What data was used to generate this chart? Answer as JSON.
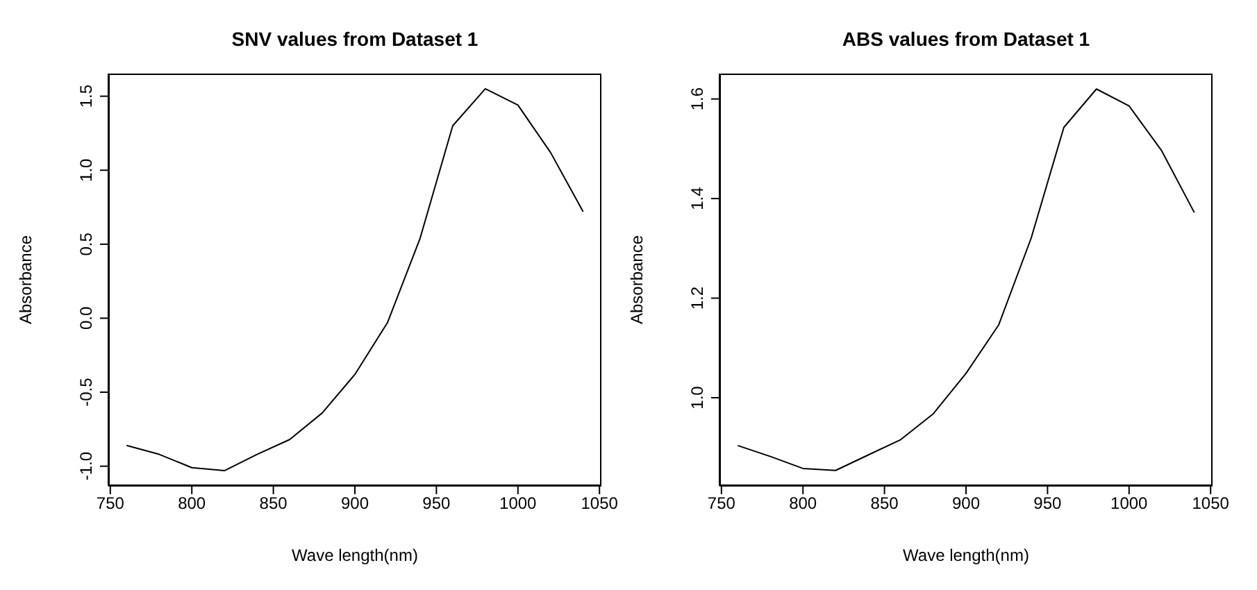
{
  "chart_data": [
    {
      "type": "line",
      "title": "SNV values from Dataset 1",
      "xlabel": "Wave length(nm)",
      "ylabel": "Absorbance",
      "x": [
        760,
        780,
        800,
        820,
        840,
        860,
        880,
        900,
        920,
        940,
        960,
        980,
        1000,
        1020,
        1040
      ],
      "values": [
        -0.86,
        -0.92,
        -1.01,
        -1.03,
        -0.92,
        -0.82,
        -0.64,
        -0.38,
        -0.03,
        0.54,
        1.3,
        1.55,
        1.44,
        1.12,
        0.72
      ],
      "color": "#000000",
      "xlim": [
        748.8,
        1051.2
      ],
      "ylim": [
        -1.133,
        1.653
      ],
      "xticks": [
        750,
        800,
        850,
        900,
        950,
        1000,
        1050
      ],
      "yticks": [
        {
          "value": -1,
          "label": "-1.0"
        },
        -0.5,
        {
          "value": 0,
          "label": "0.0"
        },
        0.5,
        {
          "value": 1,
          "label": "1.0"
        },
        1.5
      ]
    },
    {
      "type": "line",
      "title": "ABS values from Dataset 1",
      "xlabel": "Wave length(nm)",
      "ylabel": "Absorbance",
      "x": [
        760,
        780,
        800,
        820,
        840,
        860,
        880,
        900,
        920,
        940,
        960,
        980,
        1000,
        1020,
        1040
      ],
      "values": [
        0.904,
        0.882,
        0.858,
        0.854,
        0.885,
        0.916,
        0.968,
        1.049,
        1.146,
        1.321,
        1.543,
        1.62,
        1.586,
        1.496,
        1.372
      ],
      "color": "#000000",
      "xlim": [
        748.8,
        1051.2
      ],
      "ylim": [
        0.823,
        1.651
      ],
      "xticks": [
        750,
        800,
        850,
        900,
        950,
        1000,
        1050
      ],
      "yticks": [
        {
          "value": 1,
          "label": "1.0"
        },
        1.2,
        1.4,
        1.6
      ]
    }
  ]
}
